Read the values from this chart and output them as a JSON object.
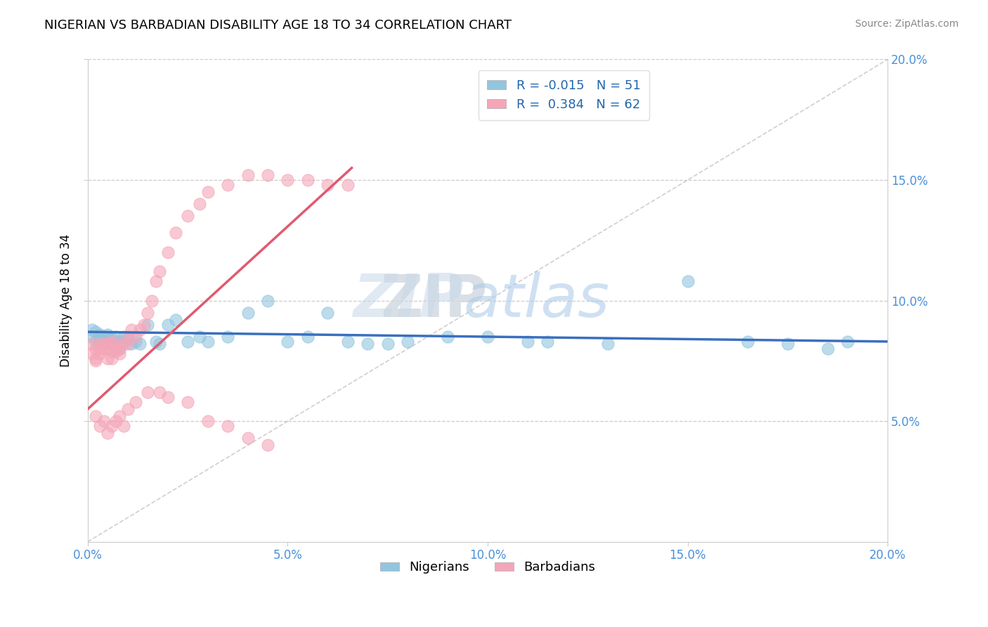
{
  "title": "NIGERIAN VS BARBADIAN DISABILITY AGE 18 TO 34 CORRELATION CHART",
  "source": "Source: ZipAtlas.com",
  "ylabel": "Disability Age 18 to 34",
  "xlim": [
    0.0,
    0.2
  ],
  "ylim": [
    0.0,
    0.2
  ],
  "xticks": [
    0.0,
    0.05,
    0.1,
    0.15,
    0.2
  ],
  "yticks": [
    0.05,
    0.1,
    0.15,
    0.2
  ],
  "xticklabels": [
    "0.0%",
    "5.0%",
    "10.0%",
    "15.0%",
    "20.0%"
  ],
  "yticklabels_right": [
    "5.0%",
    "10.0%",
    "15.0%",
    "20.0%"
  ],
  "legend_r_nigerian": "-0.015",
  "legend_n_nigerian": "51",
  "legend_r_barbadian": "0.384",
  "legend_n_barbadian": "62",
  "nigerian_color": "#92c5de",
  "barbadian_color": "#f4a6b8",
  "nigerian_line_color": "#3a6fbf",
  "barbadian_line_color": "#e05a6e",
  "diagonal_color": "#bbbbbb",
  "watermark_zip": "ZIP",
  "watermark_atlas": "atlas",
  "nigerian_x": [
    0.001,
    0.001,
    0.002,
    0.002,
    0.003,
    0.003,
    0.003,
    0.004,
    0.004,
    0.005,
    0.005,
    0.006,
    0.006,
    0.007,
    0.007,
    0.008,
    0.008,
    0.009,
    0.009,
    0.01,
    0.011,
    0.012,
    0.013,
    0.015,
    0.017,
    0.018,
    0.02,
    0.022,
    0.025,
    0.028,
    0.03,
    0.035,
    0.04,
    0.045,
    0.05,
    0.055,
    0.06,
    0.065,
    0.07,
    0.075,
    0.08,
    0.09,
    0.1,
    0.11,
    0.115,
    0.13,
    0.15,
    0.165,
    0.175,
    0.185,
    0.19
  ],
  "nigerian_y": [
    0.088,
    0.085,
    0.083,
    0.087,
    0.084,
    0.086,
    0.082,
    0.085,
    0.083,
    0.084,
    0.086,
    0.082,
    0.084,
    0.083,
    0.085,
    0.082,
    0.08,
    0.083,
    0.085,
    0.084,
    0.082,
    0.083,
    0.082,
    0.09,
    0.083,
    0.082,
    0.09,
    0.092,
    0.083,
    0.085,
    0.083,
    0.085,
    0.095,
    0.1,
    0.083,
    0.085,
    0.095,
    0.083,
    0.082,
    0.082,
    0.083,
    0.085,
    0.085,
    0.083,
    0.083,
    0.082,
    0.108,
    0.083,
    0.082,
    0.08,
    0.083
  ],
  "barbadian_x": [
    0.001,
    0.001,
    0.002,
    0.002,
    0.002,
    0.003,
    0.003,
    0.003,
    0.004,
    0.004,
    0.005,
    0.005,
    0.005,
    0.006,
    0.006,
    0.006,
    0.007,
    0.007,
    0.007,
    0.008,
    0.008,
    0.009,
    0.01,
    0.01,
    0.011,
    0.012,
    0.013,
    0.014,
    0.015,
    0.016,
    0.017,
    0.018,
    0.02,
    0.022,
    0.025,
    0.028,
    0.03,
    0.035,
    0.04,
    0.045,
    0.05,
    0.055,
    0.06,
    0.065,
    0.002,
    0.003,
    0.004,
    0.005,
    0.006,
    0.007,
    0.008,
    0.009,
    0.01,
    0.012,
    0.015,
    0.018,
    0.02,
    0.025,
    0.03,
    0.035,
    0.04,
    0.045
  ],
  "barbadian_y": [
    0.082,
    0.078,
    0.076,
    0.08,
    0.075,
    0.08,
    0.082,
    0.078,
    0.082,
    0.08,
    0.08,
    0.082,
    0.076,
    0.079,
    0.083,
    0.076,
    0.08,
    0.082,
    0.079,
    0.078,
    0.08,
    0.082,
    0.085,
    0.082,
    0.088,
    0.085,
    0.088,
    0.09,
    0.095,
    0.1,
    0.108,
    0.112,
    0.12,
    0.128,
    0.135,
    0.14,
    0.145,
    0.148,
    0.152,
    0.152,
    0.15,
    0.15,
    0.148,
    0.148,
    0.052,
    0.048,
    0.05,
    0.045,
    0.048,
    0.05,
    0.052,
    0.048,
    0.055,
    0.058,
    0.062,
    0.062,
    0.06,
    0.058,
    0.05,
    0.048,
    0.043,
    0.04
  ],
  "nig_line_x": [
    0.0,
    0.2
  ],
  "nig_line_y": [
    0.087,
    0.083
  ],
  "bar_line_x": [
    0.0,
    0.066
  ],
  "bar_line_y": [
    0.055,
    0.155
  ]
}
